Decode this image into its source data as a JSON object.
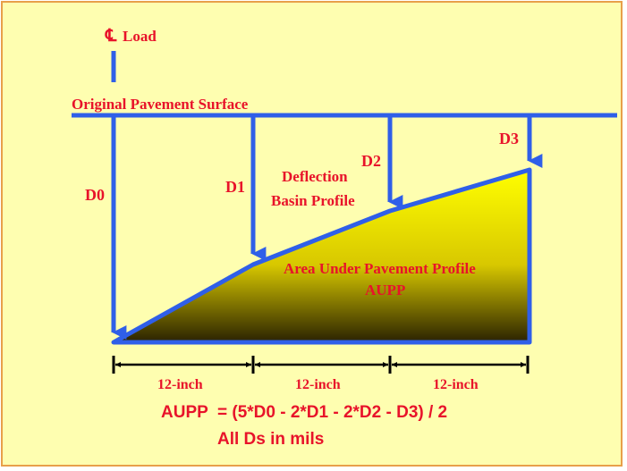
{
  "labels": {
    "centerline_symbol": "℄",
    "load": "Load",
    "surface": "Original Pavement Surface",
    "d0": "D0",
    "d1": "D1",
    "d2": "D2",
    "d3": "D3",
    "basin_line1": "Deflection",
    "basin_line2": "Basin Profile",
    "area_line1": "Area Under Pavement Profile",
    "area_line2": "AUPP",
    "spacing1": "12-inch",
    "spacing2": "12-inch",
    "spacing3": "12-inch"
  },
  "formula": {
    "line1": "AUPP  = (5*D0 - 2*D1 - 2*D2 - D3) / 2",
    "line2": "All Ds in mils"
  },
  "colors": {
    "line": "#2f5fe8",
    "text": "#e8132a",
    "background": "#fefeb0",
    "border": "#e8a04a",
    "fill_top": "#ffff00",
    "fill_bottom": "#2a2200"
  }
}
